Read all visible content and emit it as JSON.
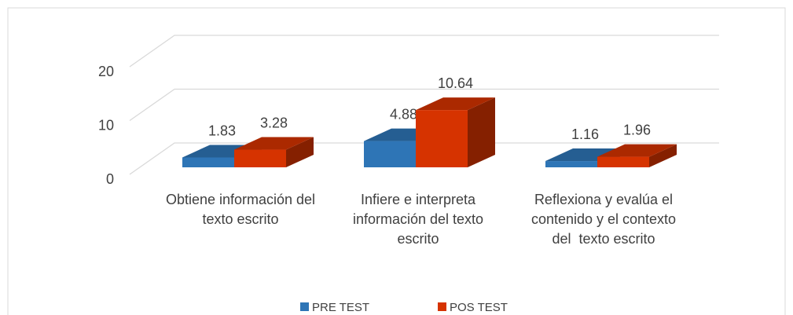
{
  "chart_data": {
    "type": "bar3d",
    "categories": [
      "Obtiene información del texto escrito",
      "Infiere e interpreta información del texto escrito",
      "Reflexiona y evalúa el contenido y el contexto del  texto escrito"
    ],
    "series": [
      {
        "name": "PRE TEST",
        "color": "#2e75b6",
        "values": [
          1.83,
          4.88,
          1.16
        ]
      },
      {
        "name": "POS TEST",
        "color": "#d63300",
        "values": [
          3.28,
          10.64,
          1.96
        ]
      }
    ],
    "ylim": [
      0,
      20
    ],
    "yticks": [
      0,
      10,
      20
    ],
    "grid": true,
    "legend": "bottom"
  }
}
